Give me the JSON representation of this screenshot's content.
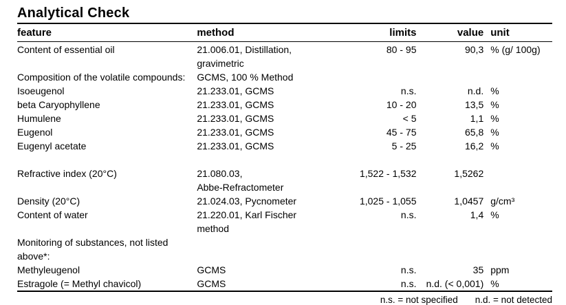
{
  "title": "Analytical Check",
  "table": {
    "columns": [
      {
        "label": "feature"
      },
      {
        "label": "method"
      },
      {
        "label": "limits"
      },
      {
        "label": "value"
      },
      {
        "label": "unit"
      }
    ],
    "rows": [
      {
        "feature": "Content of essential oil",
        "method": "21.006.01, Distillation,\ngravimetric",
        "limits": "80 - 95",
        "value": "90,3",
        "unit": "% (g/ 100g)"
      },
      {
        "feature": "Composition of the volatile compounds:",
        "method": "GCMS, 100 % Method",
        "limits": "",
        "value": "",
        "unit": ""
      },
      {
        "feature": "Isoeugenol",
        "method": "21.233.01, GCMS",
        "limits": "n.s.",
        "value": "n.d.",
        "unit": "%"
      },
      {
        "feature": "beta Caryophyllene",
        "method": "21.233.01, GCMS",
        "limits": "10 - 20",
        "value": "13,5",
        "unit": "%"
      },
      {
        "feature": "Humulene",
        "method": "21.233.01, GCMS",
        "limits": "< 5",
        "value": "1,1",
        "unit": "%"
      },
      {
        "feature": "Eugenol",
        "method": "21.233.01, GCMS",
        "limits": "45 - 75",
        "value": "65,8",
        "unit": "%"
      },
      {
        "feature": "Eugenyl acetate",
        "method": "21.233.01, GCMS",
        "limits": "5 - 25",
        "value": "16,2",
        "unit": "%"
      },
      {
        "feature": "Refractive index (20°C)",
        "method": "21.080.03,\nAbbe-Refractometer",
        "limits": "1,522 - 1,532",
        "value": "1,5262",
        "unit": "",
        "gap_before": true
      },
      {
        "feature": "Density (20°C)",
        "method": "21.024.03, Pycnometer",
        "limits": "1,025 - 1,055",
        "value": "1,0457",
        "unit": "g/cm³"
      },
      {
        "feature": "Content of water",
        "method": "21.220.01, Karl Fischer\nmethod",
        "limits": "n.s.",
        "value": "1,4",
        "unit": "%"
      },
      {
        "feature": "Monitoring of substances, not listed\nabove*:",
        "method": "",
        "limits": "",
        "value": "",
        "unit": ""
      },
      {
        "feature": "Methyleugenol",
        "method": "GCMS",
        "limits": "n.s.",
        "value": "35",
        "unit": "ppm"
      },
      {
        "feature": "Estragole (= Methyl chavicol)",
        "method": "GCMS",
        "limits": "n.s.",
        "value": "n.d. (< 0,001)",
        "unit": "%"
      }
    ],
    "footnotes": {
      "not_specified": "n.s. = not specified",
      "not_detected": "n.d. = not detected"
    }
  }
}
